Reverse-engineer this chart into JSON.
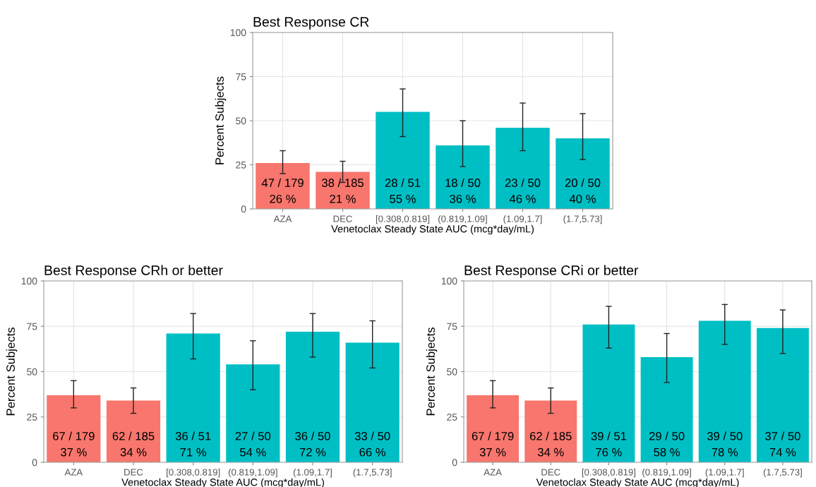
{
  "chart_data": [
    {
      "type": "bar",
      "title": "Best Response CR",
      "xlabel": "Venetoclax Steady State AUC (mcg*day/mL)",
      "ylabel": "Percent Subjects",
      "categories": [
        "AZA",
        "DEC",
        "[0.308,0.819]",
        "(0.819,1.09]",
        "(1.09,1.7]",
        "(1.7,5.73]"
      ],
      "values": [
        26,
        21,
        55,
        36,
        46,
        40
      ],
      "colors": [
        "#f8766d",
        "#f8766d",
        "#00bfc4",
        "#00bfc4",
        "#00bfc4",
        "#00bfc4"
      ],
      "errors": [
        [
          20,
          33
        ],
        [
          15,
          27
        ],
        [
          41,
          68
        ],
        [
          24,
          50
        ],
        [
          33,
          60
        ],
        [
          28,
          54
        ]
      ],
      "value_labels": [
        "47 / 179\n26 %",
        "38 / 185\n21 %",
        "28 / 51\n55 %",
        "18 / 50\n36 %",
        "23 / 50\n46 %",
        "20 / 50\n40 %"
      ],
      "ylim": [
        0,
        100
      ],
      "yticks": [
        0,
        25,
        50,
        75,
        100
      ],
      "grid": true
    },
    {
      "type": "bar",
      "title": "Best Response CRh or better",
      "xlabel": "Venetoclax Steady State AUC (mcg*day/mL)",
      "ylabel": "Percent Subjects",
      "categories": [
        "AZA",
        "DEC",
        "[0.308,0.819]",
        "(0.819,1.09]",
        "(1.09,1.7]",
        "(1.7,5.73]"
      ],
      "values": [
        37,
        34,
        71,
        54,
        72,
        66
      ],
      "colors": [
        "#f8766d",
        "#f8766d",
        "#00bfc4",
        "#00bfc4",
        "#00bfc4",
        "#00bfc4"
      ],
      "errors": [
        [
          30,
          45
        ],
        [
          27,
          41
        ],
        [
          57,
          82
        ],
        [
          40,
          67
        ],
        [
          58,
          82
        ],
        [
          52,
          78
        ]
      ],
      "value_labels": [
        "67 / 179\n37 %",
        "62 / 185\n34 %",
        "36 / 51\n71 %",
        "27 / 50\n54 %",
        "36 / 50\n72 %",
        "33 / 50\n66 %"
      ],
      "ylim": [
        0,
        100
      ],
      "yticks": [
        0,
        25,
        50,
        75,
        100
      ],
      "grid": true
    },
    {
      "type": "bar",
      "title": "Best Response CRi or better",
      "xlabel": "Venetoclax Steady State AUC (mcg*day/mL)",
      "ylabel": "Percent Subjects",
      "categories": [
        "AZA",
        "DEC",
        "[0.308,0.819]",
        "(0.819,1.09]",
        "(1.09,1.7]",
        "(1.7,5.73]"
      ],
      "values": [
        37,
        34,
        76,
        58,
        78,
        74
      ],
      "colors": [
        "#f8766d",
        "#f8766d",
        "#00bfc4",
        "#00bfc4",
        "#00bfc4",
        "#00bfc4"
      ],
      "errors": [
        [
          30,
          45
        ],
        [
          27,
          41
        ],
        [
          63,
          86
        ],
        [
          44,
          71
        ],
        [
          65,
          87
        ],
        [
          60,
          84
        ]
      ],
      "value_labels": [
        "67 / 179\n37 %",
        "62 / 185\n34 %",
        "39 / 51\n76 %",
        "29 / 50\n58 %",
        "39 / 50\n78 %",
        "37 / 50\n74 %"
      ],
      "ylim": [
        0,
        100
      ],
      "yticks": [
        0,
        25,
        50,
        75,
        100
      ],
      "grid": true
    }
  ]
}
